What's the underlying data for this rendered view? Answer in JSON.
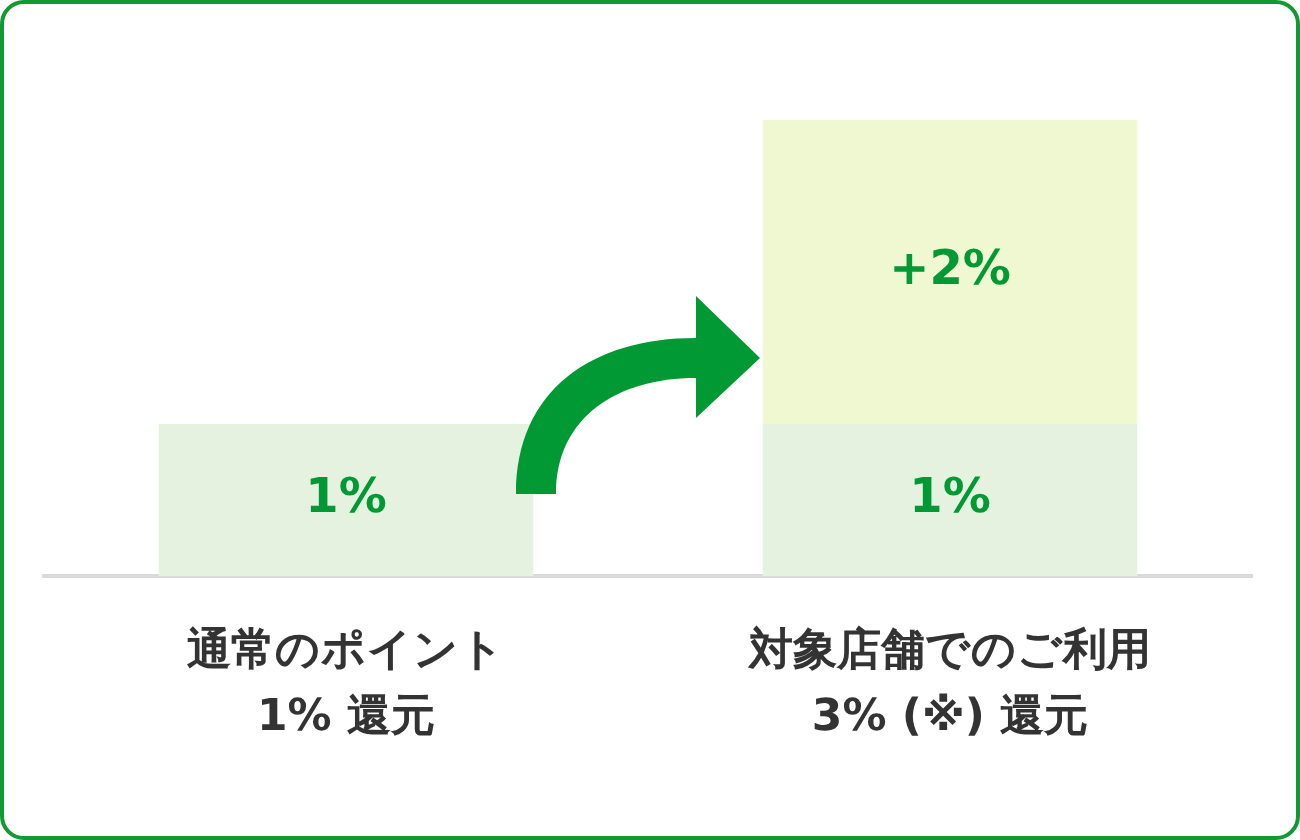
{
  "chart_data": {
    "type": "bar",
    "stacked": true,
    "legend": false,
    "grid": false,
    "categories": [
      "通常のポイント\n1% 還元",
      "対象店舗でのご利用\n3% (※) 還元"
    ],
    "series": [
      {
        "color": "#e6f2e0",
        "values": [
          1,
          1
        ],
        "value_labels": [
          "1%",
          "1%"
        ]
      },
      {
        "color": "#f0f8d2",
        "values": [
          null,
          2
        ],
        "value_labels": [
          null,
          "+2%"
        ]
      }
    ]
  }
}
